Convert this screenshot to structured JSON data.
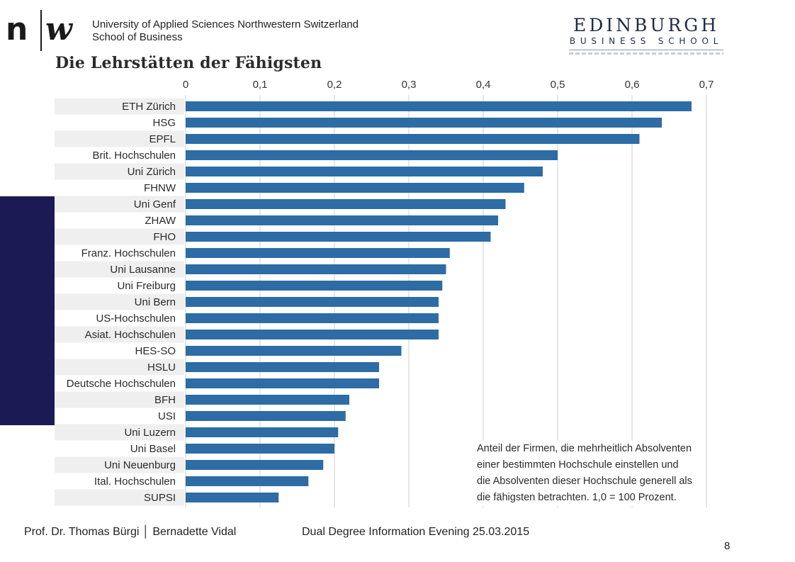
{
  "header": {
    "logo_left": {
      "n": "n",
      "w": "w"
    },
    "university_line1": "University of Applied Sciences Northwestern Switzerland",
    "university_line2": "School of Business",
    "logo_right_line1": "EDINBURGH",
    "logo_right_line2": "BUSINESS SCHOOL"
  },
  "footer": {
    "authors": "Prof. Dr. Thomas Bürgi │ Bernadette Vidal",
    "event": "Dual Degree Information Evening 25.03.2015",
    "page_number": "8"
  },
  "colors": {
    "bar": "#2d6ca5",
    "accent": "#1b1a55",
    "row_shade": "#efefef",
    "grid": "#cfcfcf"
  },
  "chart_data": {
    "type": "bar",
    "orientation": "horizontal",
    "title": "Die Lehrstätten der Fähigsten",
    "xlim": [
      0,
      0.7
    ],
    "x_ticks": [
      "0",
      "0,1",
      "0,2",
      "0,3",
      "0,4",
      "0,5",
      "0,6",
      "0,7"
    ],
    "x_tick_values": [
      0,
      0.1,
      0.2,
      0.3,
      0.4,
      0.5,
      0.6,
      0.7
    ],
    "grid": true,
    "categories": [
      "ETH Zürich",
      "HSG",
      "EPFL",
      "Brit. Hochschulen",
      "Uni Zürich",
      "FHNW",
      "Uni Genf",
      "ZHAW",
      "FHO",
      "Franz. Hochschulen",
      "Uni Lausanne",
      "Uni Freiburg",
      "Uni Bern",
      "US-Hochschulen",
      "Asiat. Hochschulen",
      "HES-SO",
      "HSLU",
      "Deutsche Hochschulen",
      "BFH",
      "USI",
      "Uni Luzern",
      "Uni Basel",
      "Uni Neuenburg",
      "Ital. Hochschulen",
      "SUPSI"
    ],
    "values": [
      0.68,
      0.64,
      0.61,
      0.5,
      0.48,
      0.455,
      0.43,
      0.42,
      0.41,
      0.355,
      0.35,
      0.345,
      0.34,
      0.34,
      0.34,
      0.29,
      0.26,
      0.26,
      0.22,
      0.215,
      0.205,
      0.2,
      0.185,
      0.165,
      0.125
    ],
    "annotation": "Anteil der Firmen, die mehrheitlich Absolventen einer bestimmten Hochschule einstellen und die Absolventen dieser Hochschule generell als die fähigsten betrachten. 1,0 = 100 Prozent.",
    "annotation_lines": [
      "Anteil der Firmen, die mehrheitlich Absolventen",
      "einer bestimmten Hochschule einstellen und",
      "die Absolventen dieser Hochschule generell als",
      "die fähigsten betrachten. 1,0 = 100 Prozent."
    ]
  }
}
